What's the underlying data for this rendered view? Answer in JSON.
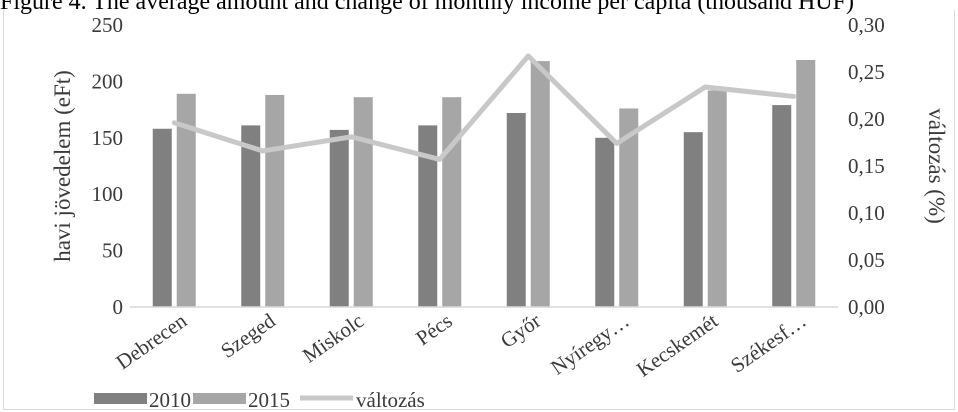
{
  "caption": "Figure 4. The average amount and change of monthly income per capita (thousand HUF)",
  "chart_data": {
    "type": "bar",
    "categories": [
      "Debrecen",
      "Szeged",
      "Miskolc",
      "Pécs",
      "Győr",
      "Nyíregy…",
      "Kecskemét",
      "Székesf…"
    ],
    "series": [
      {
        "name": "2010",
        "type": "bar",
        "axis": "left",
        "color": "#808080",
        "values": [
          158,
          161,
          157,
          161,
          172,
          150,
          155,
          179
        ]
      },
      {
        "name": "2015",
        "type": "bar",
        "axis": "left",
        "color": "#a6a6a6",
        "values": [
          189,
          188,
          186,
          186,
          218,
          176,
          192,
          219
        ]
      },
      {
        "name": "változás",
        "type": "line",
        "axis": "right",
        "color": "#c8c8c8",
        "values": [
          0.196,
          0.166,
          0.181,
          0.157,
          0.267,
          0.174,
          0.234,
          0.224
        ]
      }
    ],
    "ylabel": "havi jövedelem (eFt)",
    "ylabel_right": "változás (%)",
    "ylim": [
      0,
      250
    ],
    "ylim_right": [
      0,
      0.3
    ],
    "y_ticks": [
      "0",
      "50",
      "100",
      "150",
      "200",
      "250"
    ],
    "y_right_ticks": [
      "0,00",
      "0,05",
      "0,10",
      "0,15",
      "0,20",
      "0,25",
      "0,30"
    ],
    "grid": false,
    "legend_position": "bottom-left",
    "legend": [
      "2010",
      "2015",
      "változás"
    ]
  }
}
